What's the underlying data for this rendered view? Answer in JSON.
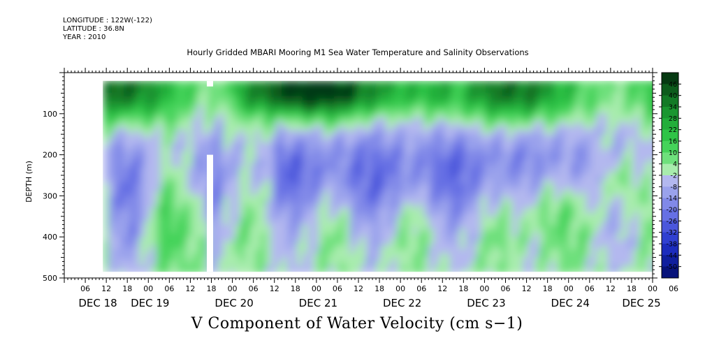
{
  "header": {
    "longitude": "LONGITUDE : 122W(-122)",
    "latitude": "LATITUDE : 36.8N",
    "year": "YEAR : 2010"
  },
  "chart_data": {
    "type": "heatmap",
    "title": "Hourly Gridded MBARI Mooring M1 Sea Water Temperature and Salinity Observations",
    "bottom_title": "V Component of Water Velocity (cm s−1)",
    "ylabel": "DEPTH (m)",
    "ylim": [
      500,
      0
    ],
    "y_ticks": [
      100,
      200,
      300,
      400,
      500
    ],
    "y_tick_labels": [
      "100",
      "200",
      "300",
      "400",
      "500"
    ],
    "x_range_hours": [
      0,
      168
    ],
    "x_tick_labels": [
      "06",
      "12",
      "18",
      "00",
      "06",
      "12",
      "18",
      "00",
      "06",
      "12",
      "18",
      "00",
      "06",
      "12",
      "18",
      "00",
      "06",
      "12",
      "18",
      "00",
      "06",
      "12",
      "18",
      "00",
      "06",
      "12",
      "18",
      "00",
      "06"
    ],
    "day_labels": [
      "DEC 18",
      "DEC 19",
      "DEC 20",
      "DEC 21",
      "DEC 22",
      "DEC 23",
      "DEC 24",
      "DEC 25"
    ],
    "data_depth_range": [
      20,
      485
    ],
    "data_time_range_hours": [
      11,
      169
    ],
    "colorbar": {
      "labels": [
        "46",
        "40",
        "34",
        "28",
        "22",
        "16",
        "10",
        "4",
        "-2",
        "-8",
        "-14",
        "-20",
        "-26",
        "-32",
        "-38",
        "-44",
        "-50"
      ],
      "colors": [
        "#063a12",
        "#0d5c1c",
        "#137a26",
        "#1a9630",
        "#22ae3a",
        "#2fc447",
        "#45d35a",
        "#6ee07c",
        "#a8ecad",
        "#b3b8ef",
        "#9aa2ec",
        "#8189e8",
        "#6670e4",
        "#4b57dc",
        "#3040d1",
        "#1c2cbd",
        "#101f9e",
        "#08137a"
      ]
    },
    "series_pattern_description": ""
  }
}
